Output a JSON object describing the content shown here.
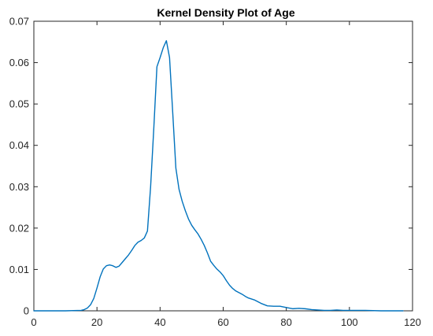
{
  "chart_data": {
    "type": "line",
    "title": "Kernel Density Plot of Age",
    "xlabel": "",
    "ylabel": "",
    "xlim": [
      0,
      120
    ],
    "ylim": [
      0,
      0.07
    ],
    "xticks": [
      0,
      20,
      40,
      60,
      80,
      100,
      120
    ],
    "yticks": [
      0,
      0.01,
      0.02,
      0.03,
      0.04,
      0.05,
      0.06,
      0.07
    ],
    "xtick_labels": [
      "0",
      "20",
      "40",
      "60",
      "80",
      "100",
      "120"
    ],
    "ytick_labels": [
      "0",
      "0.01",
      "0.02",
      "0.03",
      "0.04",
      "0.05",
      "0.06",
      "0.07"
    ],
    "grid": false,
    "line_color": "#0072BD",
    "series": [
      {
        "x": [
          0,
          10,
          15,
          16,
          17,
          18,
          19,
          20,
          21,
          22,
          23,
          24,
          25,
          26,
          27,
          28,
          29,
          30,
          31,
          32,
          33,
          34,
          35,
          36,
          37,
          38,
          39,
          40,
          41,
          42,
          43,
          44,
          45,
          46,
          47,
          48,
          49,
          50,
          51,
          52,
          53,
          54,
          55,
          56,
          57,
          58,
          59,
          60,
          61,
          62,
          63,
          64,
          65,
          66,
          67,
          68,
          70,
          72,
          74,
          76,
          78,
          80,
          82,
          84,
          86,
          88,
          90,
          92,
          94,
          96,
          98,
          100,
          105,
          110,
          117
        ],
        "y": [
          0,
          0,
          0.0001,
          0.0003,
          0.0007,
          0.0015,
          0.003,
          0.0055,
          0.0082,
          0.0101,
          0.0109,
          0.0111,
          0.0109,
          0.0105,
          0.0108,
          0.0117,
          0.0126,
          0.0135,
          0.0146,
          0.0158,
          0.0166,
          0.017,
          0.0176,
          0.0193,
          0.03,
          0.044,
          0.059,
          0.0612,
          0.0636,
          0.0653,
          0.0612,
          0.048,
          0.0345,
          0.0294,
          0.0265,
          0.0242,
          0.0222,
          0.0207,
          0.0196,
          0.0186,
          0.0173,
          0.0158,
          0.014,
          0.012,
          0.011,
          0.0101,
          0.0094,
          0.0085,
          0.0073,
          0.0062,
          0.0054,
          0.0048,
          0.0044,
          0.004,
          0.0035,
          0.0031,
          0.0026,
          0.0018,
          0.0012,
          0.0011,
          0.0011,
          0.0008,
          0.0005,
          0.0006,
          0.0005,
          0.0003,
          0.0002,
          0.0001,
          0.0001,
          0.0002,
          0.0001,
          0.0001,
          0.0001,
          0,
          0
        ]
      }
    ]
  }
}
